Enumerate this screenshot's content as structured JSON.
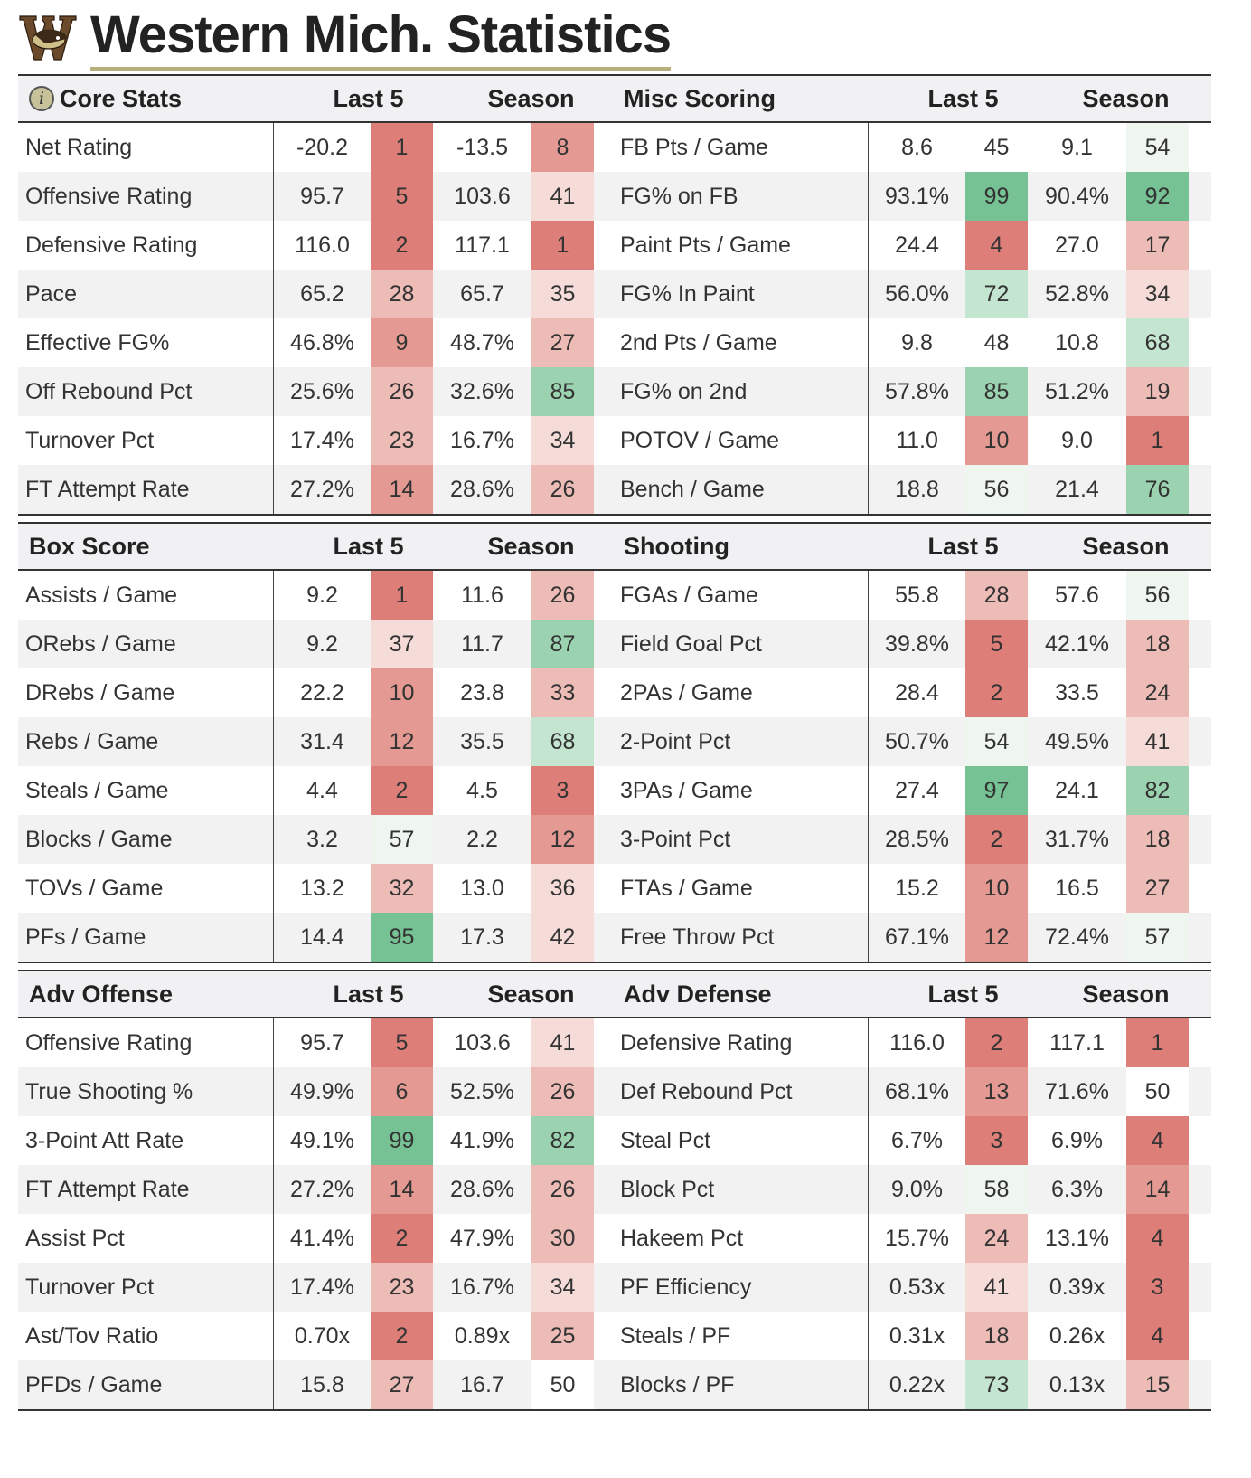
{
  "page": {
    "title": "Western Mich. Statistics"
  },
  "panels": [
    {
      "title": "Core Stats",
      "col_last5": "Last 5",
      "col_season": "Season",
      "has_info": true,
      "rows": [
        {
          "label": "Net Rating",
          "last5": "-20.2",
          "last5_rank": "1",
          "season": "-13.5",
          "season_rank": "8"
        },
        {
          "label": "Offensive Rating",
          "last5": "95.7",
          "last5_rank": "5",
          "season": "103.6",
          "season_rank": "41"
        },
        {
          "label": "Defensive Rating",
          "last5": "116.0",
          "last5_rank": "2",
          "season": "117.1",
          "season_rank": "1"
        },
        {
          "label": "Pace",
          "last5": "65.2",
          "last5_rank": "28",
          "season": "65.7",
          "season_rank": "35"
        },
        {
          "label": "Effective FG%",
          "last5": "46.8%",
          "last5_rank": "9",
          "season": "48.7%",
          "season_rank": "27"
        },
        {
          "label": "Off Rebound Pct",
          "last5": "25.6%",
          "last5_rank": "26",
          "season": "32.6%",
          "season_rank": "85"
        },
        {
          "label": "Turnover Pct",
          "last5": "17.4%",
          "last5_rank": "23",
          "season": "16.7%",
          "season_rank": "34"
        },
        {
          "label": "FT Attempt Rate",
          "last5": "27.2%",
          "last5_rank": "14",
          "season": "28.6%",
          "season_rank": "26"
        }
      ]
    },
    {
      "title": "Misc Scoring",
      "col_last5": "Last 5",
      "col_season": "Season",
      "has_info": false,
      "rows": [
        {
          "label": "FB Pts / Game",
          "last5": "8.6",
          "last5_rank": "45",
          "season": "9.1",
          "season_rank": "54"
        },
        {
          "label": "FG% on FB",
          "last5": "93.1%",
          "last5_rank": "99",
          "season": "90.4%",
          "season_rank": "92"
        },
        {
          "label": "Paint Pts / Game",
          "last5": "24.4",
          "last5_rank": "4",
          "season": "27.0",
          "season_rank": "17"
        },
        {
          "label": "FG% In Paint",
          "last5": "56.0%",
          "last5_rank": "72",
          "season": "52.8%",
          "season_rank": "34"
        },
        {
          "label": "2nd Pts / Game",
          "last5": "9.8",
          "last5_rank": "48",
          "season": "10.8",
          "season_rank": "68"
        },
        {
          "label": "FG% on 2nd",
          "last5": "57.8%",
          "last5_rank": "85",
          "season": "51.2%",
          "season_rank": "19"
        },
        {
          "label": "POTOV / Game",
          "last5": "11.0",
          "last5_rank": "10",
          "season": "9.0",
          "season_rank": "1"
        },
        {
          "label": "Bench / Game",
          "last5": "18.8",
          "last5_rank": "56",
          "season": "21.4",
          "season_rank": "76"
        }
      ]
    },
    {
      "title": "Box Score",
      "col_last5": "Last 5",
      "col_season": "Season",
      "has_info": false,
      "rows": [
        {
          "label": "Assists / Game",
          "last5": "9.2",
          "last5_rank": "1",
          "season": "11.6",
          "season_rank": "26"
        },
        {
          "label": "ORebs / Game",
          "last5": "9.2",
          "last5_rank": "37",
          "season": "11.7",
          "season_rank": "87"
        },
        {
          "label": "DRebs / Game",
          "last5": "22.2",
          "last5_rank": "10",
          "season": "23.8",
          "season_rank": "33"
        },
        {
          "label": "Rebs / Game",
          "last5": "31.4",
          "last5_rank": "12",
          "season": "35.5",
          "season_rank": "68"
        },
        {
          "label": "Steals / Game",
          "last5": "4.4",
          "last5_rank": "2",
          "season": "4.5",
          "season_rank": "3"
        },
        {
          "label": "Blocks / Game",
          "last5": "3.2",
          "last5_rank": "57",
          "season": "2.2",
          "season_rank": "12"
        },
        {
          "label": "TOVs / Game",
          "last5": "13.2",
          "last5_rank": "32",
          "season": "13.0",
          "season_rank": "36"
        },
        {
          "label": "PFs / Game",
          "last5": "14.4",
          "last5_rank": "95",
          "season": "17.3",
          "season_rank": "42"
        }
      ]
    },
    {
      "title": "Shooting",
      "col_last5": "Last 5",
      "col_season": "Season",
      "has_info": false,
      "rows": [
        {
          "label": "FGAs / Game",
          "last5": "55.8",
          "last5_rank": "28",
          "season": "57.6",
          "season_rank": "56"
        },
        {
          "label": "Field Goal Pct",
          "last5": "39.8%",
          "last5_rank": "5",
          "season": "42.1%",
          "season_rank": "18"
        },
        {
          "label": "2PAs / Game",
          "last5": "28.4",
          "last5_rank": "2",
          "season": "33.5",
          "season_rank": "24"
        },
        {
          "label": "2-Point Pct",
          "last5": "50.7%",
          "last5_rank": "54",
          "season": "49.5%",
          "season_rank": "41"
        },
        {
          "label": "3PAs / Game",
          "last5": "27.4",
          "last5_rank": "97",
          "season": "24.1",
          "season_rank": "82"
        },
        {
          "label": "3-Point Pct",
          "last5": "28.5%",
          "last5_rank": "2",
          "season": "31.7%",
          "season_rank": "18"
        },
        {
          "label": "FTAs / Game",
          "last5": "15.2",
          "last5_rank": "10",
          "season": "16.5",
          "season_rank": "27"
        },
        {
          "label": "Free Throw Pct",
          "last5": "67.1%",
          "last5_rank": "12",
          "season": "72.4%",
          "season_rank": "57"
        }
      ]
    },
    {
      "title": "Adv Offense",
      "col_last5": "Last 5",
      "col_season": "Season",
      "has_info": false,
      "rows": [
        {
          "label": "Offensive Rating",
          "last5": "95.7",
          "last5_rank": "5",
          "season": "103.6",
          "season_rank": "41"
        },
        {
          "label": "True Shooting %",
          "last5": "49.9%",
          "last5_rank": "6",
          "season": "52.5%",
          "season_rank": "26"
        },
        {
          "label": "3-Point Att Rate",
          "last5": "49.1%",
          "last5_rank": "99",
          "season": "41.9%",
          "season_rank": "82"
        },
        {
          "label": "FT Attempt Rate",
          "last5": "27.2%",
          "last5_rank": "14",
          "season": "28.6%",
          "season_rank": "26"
        },
        {
          "label": "Assist Pct",
          "last5": "41.4%",
          "last5_rank": "2",
          "season": "47.9%",
          "season_rank": "30"
        },
        {
          "label": "Turnover Pct",
          "last5": "17.4%",
          "last5_rank": "23",
          "season": "16.7%",
          "season_rank": "34"
        },
        {
          "label": "Ast/Tov Ratio",
          "last5": "0.70x",
          "last5_rank": "2",
          "season": "0.89x",
          "season_rank": "25"
        },
        {
          "label": "PFDs / Game",
          "last5": "15.8",
          "last5_rank": "27",
          "season": "16.7",
          "season_rank": "50"
        }
      ]
    },
    {
      "title": "Adv Defense",
      "col_last5": "Last 5",
      "col_season": "Season",
      "has_info": false,
      "rows": [
        {
          "label": "Defensive Rating",
          "last5": "116.0",
          "last5_rank": "2",
          "season": "117.1",
          "season_rank": "1"
        },
        {
          "label": "Def Rebound Pct",
          "last5": "68.1%",
          "last5_rank": "13",
          "season": "71.6%",
          "season_rank": "50"
        },
        {
          "label": "Steal Pct",
          "last5": "6.7%",
          "last5_rank": "3",
          "season": "6.9%",
          "season_rank": "4"
        },
        {
          "label": "Block Pct",
          "last5": "9.0%",
          "last5_rank": "58",
          "season": "6.3%",
          "season_rank": "14"
        },
        {
          "label": "Hakeem Pct",
          "last5": "15.7%",
          "last5_rank": "24",
          "season": "13.1%",
          "season_rank": "4"
        },
        {
          "label": "PF Efficiency",
          "last5": "0.53x",
          "last5_rank": "41",
          "season": "0.39x",
          "season_rank": "3"
        },
        {
          "label": "Steals / PF",
          "last5": "0.31x",
          "last5_rank": "18",
          "season": "0.26x",
          "season_rank": "4"
        },
        {
          "label": "Blocks / PF",
          "last5": "0.22x",
          "last5_rank": "73",
          "season": "0.13x",
          "season_rank": "15"
        }
      ]
    }
  ]
}
